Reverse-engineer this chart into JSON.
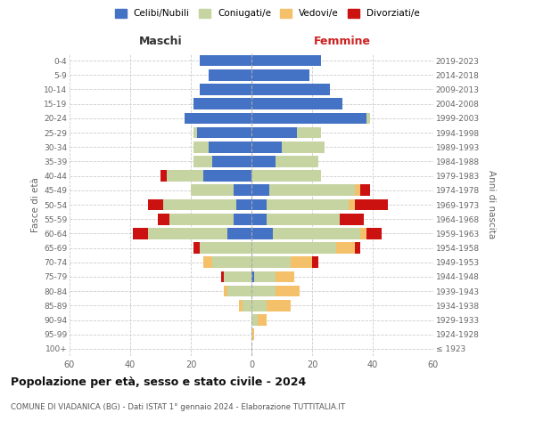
{
  "age_groups": [
    "100+",
    "95-99",
    "90-94",
    "85-89",
    "80-84",
    "75-79",
    "70-74",
    "65-69",
    "60-64",
    "55-59",
    "50-54",
    "45-49",
    "40-44",
    "35-39",
    "30-34",
    "25-29",
    "20-24",
    "15-19",
    "10-14",
    "5-9",
    "0-4"
  ],
  "birth_years": [
    "≤ 1923",
    "1924-1928",
    "1929-1933",
    "1934-1938",
    "1939-1943",
    "1944-1948",
    "1949-1953",
    "1954-1958",
    "1959-1963",
    "1964-1968",
    "1969-1973",
    "1974-1978",
    "1979-1983",
    "1984-1988",
    "1989-1993",
    "1994-1998",
    "1999-2003",
    "2004-2008",
    "2009-2013",
    "2014-2018",
    "2019-2023"
  ],
  "colors": {
    "celibi": "#4472C4",
    "coniugati": "#c5d4a0",
    "vedovi": "#f4c06a",
    "divorziati": "#cc1111"
  },
  "males": {
    "celibi": [
      0,
      0,
      0,
      0,
      0,
      0,
      0,
      0,
      8,
      6,
      5,
      6,
      16,
      13,
      14,
      18,
      22,
      19,
      17,
      14,
      17
    ],
    "coniugati": [
      0,
      0,
      0,
      3,
      8,
      9,
      13,
      17,
      26,
      21,
      24,
      14,
      12,
      6,
      5,
      1,
      0,
      0,
      0,
      0,
      0
    ],
    "vedovi": [
      0,
      0,
      0,
      1,
      1,
      0,
      3,
      0,
      0,
      0,
      0,
      0,
      0,
      0,
      0,
      0,
      0,
      0,
      0,
      0,
      0
    ],
    "divorziati": [
      0,
      0,
      0,
      0,
      0,
      1,
      0,
      2,
      5,
      4,
      5,
      0,
      2,
      0,
      0,
      0,
      0,
      0,
      0,
      0,
      0
    ]
  },
  "females": {
    "nubili": [
      0,
      0,
      0,
      0,
      0,
      1,
      0,
      0,
      7,
      5,
      5,
      6,
      0,
      8,
      10,
      15,
      38,
      30,
      26,
      19,
      23
    ],
    "coniugate": [
      0,
      0,
      2,
      5,
      8,
      7,
      13,
      28,
      29,
      24,
      27,
      28,
      23,
      14,
      14,
      8,
      1,
      0,
      0,
      0,
      0
    ],
    "vedove": [
      0,
      1,
      3,
      8,
      8,
      6,
      7,
      6,
      2,
      0,
      2,
      2,
      0,
      0,
      0,
      0,
      0,
      0,
      0,
      0,
      0
    ],
    "divorziate": [
      0,
      0,
      0,
      0,
      0,
      0,
      2,
      2,
      5,
      8,
      11,
      3,
      0,
      0,
      0,
      0,
      0,
      0,
      0,
      0,
      0
    ]
  },
  "title_main": "Popolazione per età, sesso e stato civile - 2024",
  "title_sub": "COMUNE DI VIADANICA (BG) - Dati ISTAT 1° gennaio 2024 - Elaborazione TUTTITALIA.IT",
  "xlabel_left": "Maschi",
  "xlabel_right": "Femmine",
  "ylabel_left": "Fasce di età",
  "ylabel_right": "Anni di nascita",
  "xlim": 60,
  "legend_labels": [
    "Celibi/Nubili",
    "Coniugati/e",
    "Vedovi/e",
    "Divorziati/e"
  ],
  "background_color": "#ffffff"
}
